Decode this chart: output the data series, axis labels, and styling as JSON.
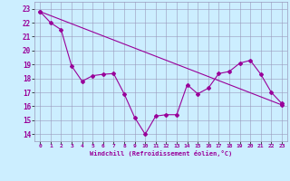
{
  "xlabel": "Windchill (Refroidissement éolien,°C)",
  "line1_x": [
    0,
    1,
    2,
    3,
    4,
    5,
    6,
    7,
    8,
    9,
    10,
    11,
    12,
    13,
    14,
    15,
    16,
    17,
    18,
    19,
    20,
    21,
    22,
    23
  ],
  "line1_y": [
    22.8,
    22.0,
    21.5,
    18.9,
    17.8,
    18.2,
    18.3,
    18.35,
    16.9,
    15.2,
    14.0,
    15.3,
    15.4,
    15.4,
    17.55,
    16.9,
    17.3,
    18.35,
    18.5,
    19.1,
    19.3,
    18.3,
    17.0,
    16.2
  ],
  "line2_x": [
    0,
    23
  ],
  "line2_y": [
    22.8,
    16.1
  ],
  "line_color": "#990099",
  "bg_color": "#cceeff",
  "grid_color": "#9999bb",
  "ylim": [
    13.5,
    23.5
  ],
  "xlim": [
    -0.5,
    23.5
  ],
  "yticks": [
    14,
    15,
    16,
    17,
    18,
    19,
    20,
    21,
    22,
    23
  ],
  "xticks": [
    0,
    1,
    2,
    3,
    4,
    5,
    6,
    7,
    8,
    9,
    10,
    11,
    12,
    13,
    14,
    15,
    16,
    17,
    18,
    19,
    20,
    21,
    22,
    23
  ]
}
